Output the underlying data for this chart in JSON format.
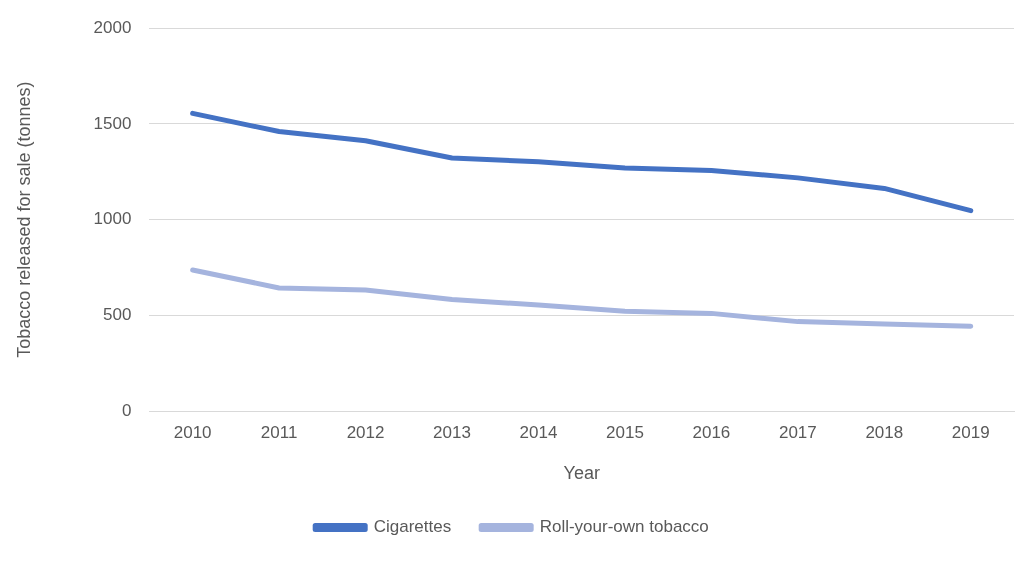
{
  "chart_data": {
    "type": "line",
    "xlabel": "Year",
    "ylabel": "Tobacco released for sale (tonnes)",
    "categories": [
      "2010",
      "2011",
      "2012",
      "2013",
      "2014",
      "2015",
      "2016",
      "2017",
      "2018",
      "2019"
    ],
    "series": [
      {
        "name": "Cigarettes",
        "color": "#4472c4",
        "values": [
          1555,
          1460,
          1412,
          1322,
          1302,
          1269,
          1256,
          1218,
          1163,
          1047
        ]
      },
      {
        "name": "Roll-your-own tobacco",
        "color": "#a5b4de",
        "values": [
          737,
          643,
          632,
          582,
          554,
          521,
          510,
          467,
          454,
          443
        ]
      }
    ],
    "ylim": [
      0,
      2000
    ],
    "yticks": [
      0,
      500,
      1000,
      1500,
      2000
    ],
    "grid": "y",
    "legend": "bottom",
    "marker": "none",
    "line_style": "solid"
  }
}
